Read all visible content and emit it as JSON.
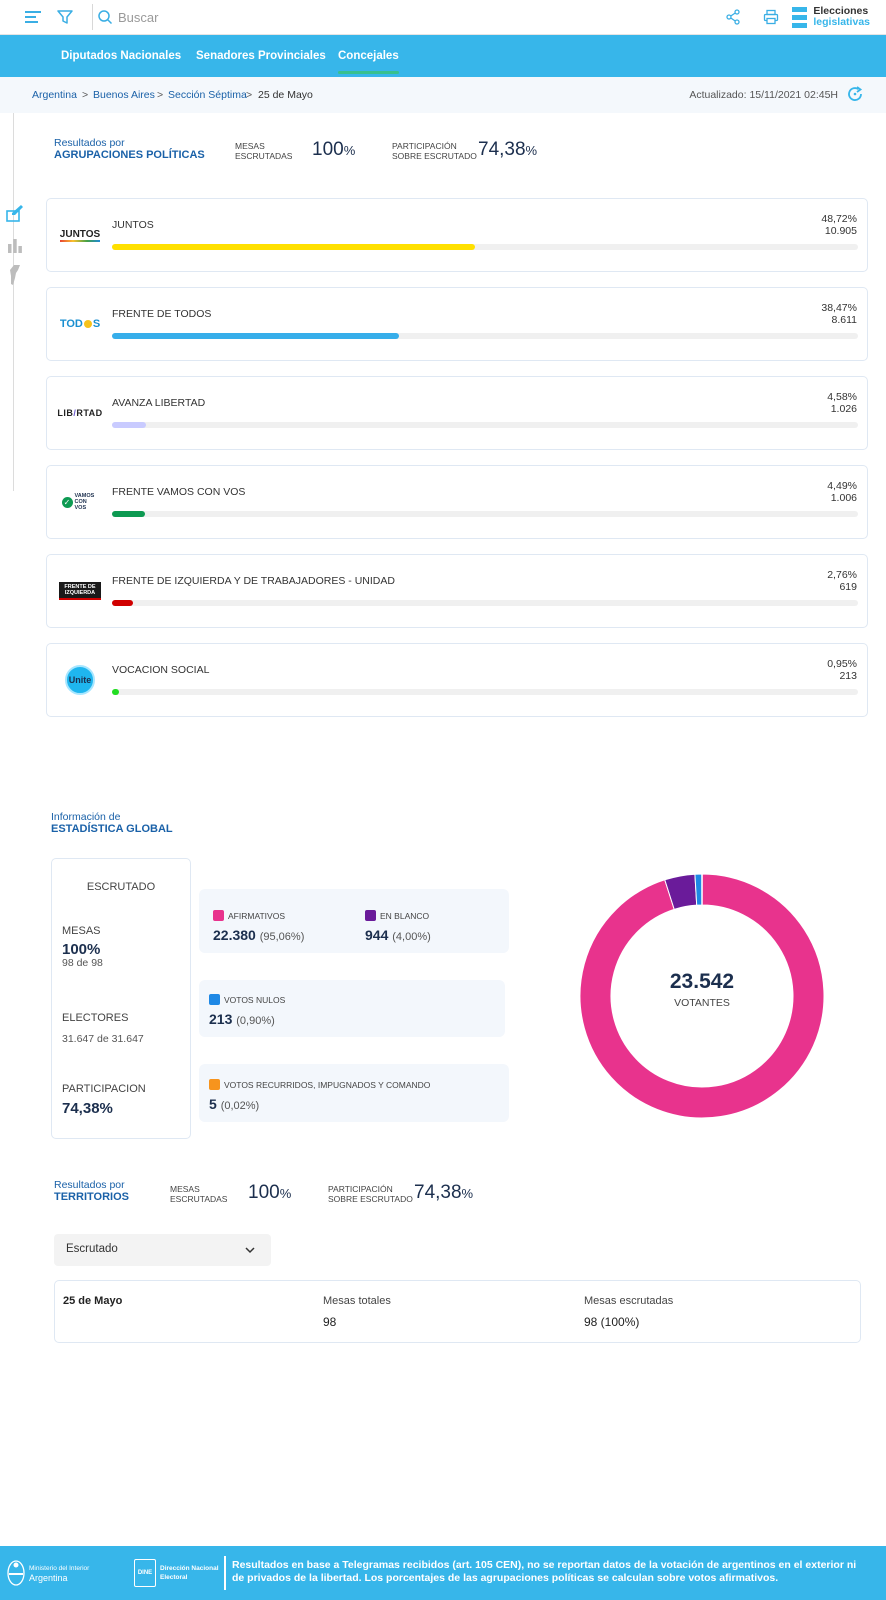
{
  "header": {
    "search_placeholder": "Buscar",
    "brand_line1": "Elecciones",
    "brand_line2": "legislativas",
    "icons": [
      "menu-icon",
      "filter-icon",
      "search-icon",
      "share-icon",
      "print-icon"
    ]
  },
  "nav": {
    "tabs": [
      {
        "label": "Diputados Nacionales",
        "active": false
      },
      {
        "label": "Senadores Provinciales",
        "active": false
      },
      {
        "label": "Concejales",
        "active": true
      }
    ]
  },
  "breadcrumb": {
    "items": [
      "Argentina",
      "Buenos Aires",
      "Sección Séptima",
      "25 de Mayo"
    ],
    "separator": ">",
    "updated": "Actualizado: 15/11/2021 02:45H"
  },
  "summary": {
    "title_small": "Resultados por",
    "title_big": "AGRUPACIONES POLÍTICAS",
    "mesas_label_1": "MESAS",
    "mesas_label_2": "ESCRUTADAS",
    "mesas_value": "100",
    "mesas_unit": "%",
    "part_label_1": "PARTICIPACIÓN",
    "part_label_2": "SOBRE ESCRUTADO",
    "part_value": "74,38",
    "part_unit": "%"
  },
  "parties": [
    {
      "name": "JUNTOS",
      "pct": "48,72%",
      "votes": "10.905",
      "share": 48.72,
      "color": "#ffe000",
      "logo_text": "JUNTOS"
    },
    {
      "name": "FRENTE DE TODOS",
      "pct": "38,47%",
      "votes": "8.611",
      "share": 38.47,
      "color": "#37aeea",
      "logo_text": "TOD S"
    },
    {
      "name": "AVANZA LIBERTAD",
      "pct": "4,58%",
      "votes": "1.026",
      "share": 4.58,
      "color": "#c9cbff",
      "logo_text": "LIB RTAD"
    },
    {
      "name": "FRENTE VAMOS CON VOS",
      "pct": "4,49%",
      "votes": "1.006",
      "share": 4.49,
      "color": "#0d9a52",
      "logo_text": "VAMOS CON VOS"
    },
    {
      "name": "FRENTE DE IZQUIERDA Y DE TRABAJADORES - UNIDAD",
      "pct": "2,76%",
      "votes": "619",
      "share": 2.76,
      "color": "#d00000",
      "logo_text": "FRENTE DE IZQUIERDA"
    },
    {
      "name": "VOCACION SOCIAL",
      "pct": "0,95%",
      "votes": "213",
      "share": 0.95,
      "color": "#22dd22",
      "logo_text": "Unite"
    }
  ],
  "global": {
    "title_small": "Información de",
    "title_big": "ESTADÍSTICA GLOBAL",
    "escrutado_title": "ESCRUTADO",
    "mesas_label": "MESAS",
    "mesas_value": "100%",
    "mesas_sub": "98 de 98",
    "electores_label": "ELECTORES",
    "electores_sub": "31.647 de 31.647",
    "participacion_label": "PARTICIPACION",
    "participacion_value": "74,38%",
    "votes": {
      "afirmativos": {
        "label": "AFIRMATIVOS",
        "value": "22.380",
        "pct": "(95,06%)",
        "color": "#e8338d"
      },
      "blanco": {
        "label": "EN BLANCO",
        "value": "944",
        "pct": "(4,00%)",
        "color": "#6a1b9a"
      },
      "nulos": {
        "label": "VOTOS NULOS",
        "value": "213",
        "pct": "(0,90%)",
        "color": "#1e88e5"
      },
      "recurridos": {
        "label": "VOTOS RECURRIDOS, IMPUGNADOS Y COMANDO",
        "value": "5",
        "pct": "(0,02%)",
        "color": "#f7941d"
      }
    },
    "votantes_value": "23.542",
    "votantes_label": "VOTANTES"
  },
  "chart_data": {
    "type": "pie",
    "categories": [
      "AFIRMATIVOS",
      "EN BLANCO",
      "VOTOS NULOS",
      "VOTOS RECURRIDOS, IMPUGNADOS Y COMANDO"
    ],
    "values": [
      22380,
      944,
      213,
      5
    ],
    "colors": [
      "#e8338d",
      "#6a1b9a",
      "#1e88e5",
      "#f7941d"
    ],
    "title": "",
    "center_value": "23.542",
    "center_label": "VOTANTES"
  },
  "territories": {
    "title_small": "Resultados por",
    "title_big": "TERRITORIOS",
    "mesas_label_1": "MESAS",
    "mesas_label_2": "ESCRUTADAS",
    "mesas_value": "100",
    "mesas_unit": "%",
    "part_label_1": "PARTICIPACIÓN",
    "part_label_2": "SOBRE ESCRUTADO",
    "part_value": "74,38",
    "part_unit": "%",
    "select_value": "Escrutado",
    "row": {
      "name": "25 de Mayo",
      "col1_header": "Mesas totales",
      "col1_value": "98",
      "col2_header": "Mesas escrutadas",
      "col2_value": "98 (100%)"
    }
  },
  "footer": {
    "ministry_line1": "Ministerio del Interior",
    "ministry_line2": "Argentina",
    "dine_badge": "DINE",
    "dine_text": "Dirección Nacional Electoral",
    "note": "Resultados en base a Telegramas recibidos (art. 105 CEN), no se reportan datos de la votación de argentinos en el exterior ni de privados de la libertad. Los porcentajes de las agrupaciones políticas se calculan sobre votos afirmativos."
  }
}
